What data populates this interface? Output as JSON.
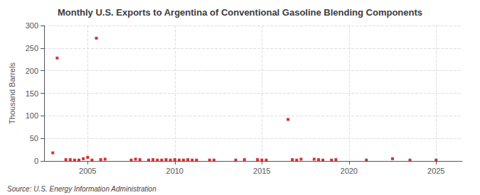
{
  "chart_data": {
    "type": "scatter",
    "title": "Monthly U.S. Exports to Argentina of Conventional Gasoline Blending Components",
    "ylabel": "Thousand Barrels",
    "annotations": [
      "Source: U.S. Energy Information Administration"
    ],
    "x": [
      2003.0,
      2003.25,
      2005.5,
      2003.75,
      2004.0,
      2004.25,
      2004.5,
      2004.75,
      2005.0,
      2005.25,
      2005.75,
      2006.0,
      2007.5,
      2007.75,
      2008.0,
      2008.5,
      2008.75,
      2009.0,
      2009.25,
      2009.5,
      2009.75,
      2010.0,
      2010.25,
      2010.5,
      2010.75,
      2011.0,
      2011.25,
      2012.0,
      2012.25,
      2013.5,
      2014.0,
      2014.75,
      2015.0,
      2015.25,
      2016.5,
      2016.75,
      2017.0,
      2017.25,
      2018.0,
      2018.25,
      2018.5,
      2019.0,
      2019.25,
      2021.0,
      2022.5,
      2023.5,
      2025.0
    ],
    "values": [
      18,
      228,
      272,
      3,
      3,
      2,
      2,
      5,
      8,
      2,
      3,
      4,
      2,
      4,
      3,
      2,
      3,
      2,
      2,
      3,
      2,
      3,
      2,
      2,
      3,
      2,
      2,
      2,
      2,
      2,
      3,
      3,
      2,
      2,
      92,
      3,
      2,
      4,
      4,
      3,
      2,
      2,
      3,
      2,
      5,
      2,
      2
    ],
    "color": "#cc0000",
    "marker": "square",
    "xlim": [
      2002.5,
      2026.5
    ],
    "xticks": [
      2005,
      2010,
      2015,
      2020,
      2025
    ],
    "ylim": [
      0,
      300
    ],
    "yticks": [
      0,
      50,
      100,
      150,
      200,
      250,
      300
    ],
    "grid": true
  }
}
